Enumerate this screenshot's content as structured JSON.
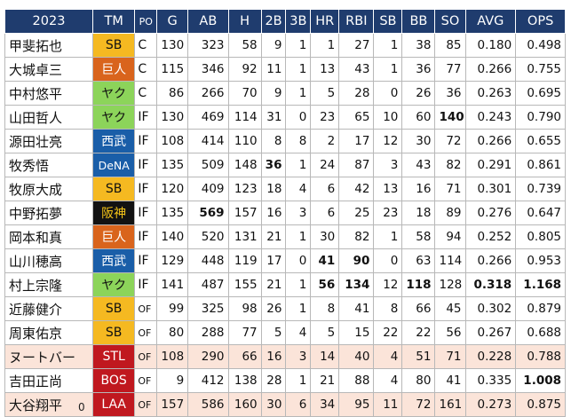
{
  "header": {
    "year": "2023",
    "columns": [
      "TM",
      "PO",
      "G",
      "AB",
      "H",
      "2B",
      "3B",
      "HR",
      "RBI",
      "SB",
      "BB",
      "SO",
      "AVG",
      "OPS"
    ]
  },
  "team_colors": {
    "SB": {
      "bg": "#f5b921",
      "fg": "#111111"
    },
    "巨人": {
      "bg": "#d9641c",
      "fg": "#ffffff"
    },
    "ヤク": {
      "bg": "#8cd45a",
      "fg": "#111111"
    },
    "西武": {
      "bg": "#1a5ea8",
      "fg": "#ffffff"
    },
    "DeNA": {
      "bg": "#1a5ea8",
      "fg": "#ffffff"
    },
    "阪神": {
      "bg": "#121212",
      "fg": "#f5c518"
    },
    "STL": {
      "bg": "#c0181f",
      "fg": "#ffffff"
    },
    "BOS": {
      "bg": "#c0181f",
      "fg": "#ffffff"
    },
    "LAA": {
      "bg": "#c0181f",
      "fg": "#ffffff"
    }
  },
  "rows": [
    {
      "name": "甲斐拓也",
      "team": "SB",
      "po": "C",
      "g": "130",
      "ab": "323",
      "h": "58",
      "d2b": "9",
      "d3b": "1",
      "hr": "1",
      "rbi": "27",
      "sb": "1",
      "bb": "38",
      "so": "85",
      "avg": "0.180",
      "ops": "0.498",
      "mlb": false
    },
    {
      "name": "大城卓三",
      "team": "巨人",
      "po": "C",
      "g": "115",
      "ab": "346",
      "h": "92",
      "d2b": "11",
      "d3b": "1",
      "hr": "13",
      "rbi": "43",
      "sb": "1",
      "bb": "36",
      "so": "77",
      "avg": "0.266",
      "ops": "0.755",
      "mlb": false
    },
    {
      "name": "中村悠平",
      "team": "ヤク",
      "po": "C",
      "g": "86",
      "ab": "266",
      "h": "70",
      "d2b": "9",
      "d3b": "1",
      "hr": "5",
      "rbi": "28",
      "sb": "0",
      "bb": "26",
      "so": "36",
      "avg": "0.263",
      "ops": "0.695",
      "mlb": false
    },
    {
      "name": "山田哲人",
      "team": "ヤク",
      "po": "IF",
      "g": "130",
      "ab": "469",
      "h": "114",
      "d2b": "31",
      "d3b": "0",
      "hr": "23",
      "rbi": "65",
      "sb": "10",
      "bb": "60",
      "so": "140",
      "avg": "0.243",
      "ops": "0.790",
      "mlb": false,
      "bold": [
        "so"
      ]
    },
    {
      "name": "源田壮亮",
      "team": "西武",
      "po": "IF",
      "g": "108",
      "ab": "414",
      "h": "110",
      "d2b": "8",
      "d3b": "8",
      "hr": "2",
      "rbi": "17",
      "sb": "12",
      "bb": "30",
      "so": "72",
      "avg": "0.266",
      "ops": "0.655",
      "mlb": false
    },
    {
      "name": "牧秀悟",
      "team": "DeNA",
      "po": "IF",
      "g": "135",
      "ab": "509",
      "h": "148",
      "d2b": "36",
      "d3b": "1",
      "hr": "24",
      "rbi": "87",
      "sb": "3",
      "bb": "43",
      "so": "82",
      "avg": "0.291",
      "ops": "0.861",
      "mlb": false,
      "bold": [
        "d2b"
      ]
    },
    {
      "name": "牧原大成",
      "team": "SB",
      "po": "IF",
      "g": "120",
      "ab": "409",
      "h": "123",
      "d2b": "18",
      "d3b": "4",
      "hr": "6",
      "rbi": "42",
      "sb": "13",
      "bb": "16",
      "so": "71",
      "avg": "0.301",
      "ops": "0.739",
      "mlb": false
    },
    {
      "name": "中野拓夢",
      "team": "阪神",
      "po": "IF",
      "g": "135",
      "ab": "569",
      "h": "157",
      "d2b": "16",
      "d3b": "3",
      "hr": "6",
      "rbi": "25",
      "sb": "23",
      "bb": "18",
      "so": "89",
      "avg": "0.276",
      "ops": "0.647",
      "mlb": false,
      "bold": [
        "ab"
      ]
    },
    {
      "name": "岡本和真",
      "team": "巨人",
      "po": "IF",
      "g": "140",
      "ab": "520",
      "h": "131",
      "d2b": "21",
      "d3b": "1",
      "hr": "30",
      "rbi": "82",
      "sb": "1",
      "bb": "58",
      "so": "94",
      "avg": "0.252",
      "ops": "0.805",
      "mlb": false
    },
    {
      "name": "山川穂高",
      "team": "西武",
      "po": "IF",
      "g": "129",
      "ab": "448",
      "h": "119",
      "d2b": "17",
      "d3b": "0",
      "hr": "41",
      "rbi": "90",
      "sb": "0",
      "bb": "63",
      "so": "114",
      "avg": "0.266",
      "ops": "0.953",
      "mlb": false,
      "bold": [
        "hr",
        "rbi"
      ]
    },
    {
      "name": "村上宗隆",
      "team": "ヤク",
      "po": "IF",
      "g": "141",
      "ab": "487",
      "h": "155",
      "d2b": "21",
      "d3b": "1",
      "hr": "56",
      "rbi": "134",
      "sb": "12",
      "bb": "118",
      "so": "128",
      "avg": "0.318",
      "ops": "1.168",
      "mlb": false,
      "bold": [
        "hr",
        "rbi",
        "bb",
        "avg",
        "ops"
      ]
    },
    {
      "name": "近藤健介",
      "team": "SB",
      "po": "OF",
      "g": "99",
      "ab": "325",
      "h": "98",
      "d2b": "26",
      "d3b": "1",
      "hr": "8",
      "rbi": "41",
      "sb": "8",
      "bb": "66",
      "so": "45",
      "avg": "0.302",
      "ops": "0.879",
      "mlb": false
    },
    {
      "name": "周東佑京",
      "team": "SB",
      "po": "OF",
      "g": "80",
      "ab": "288",
      "h": "77",
      "d2b": "5",
      "d3b": "4",
      "hr": "5",
      "rbi": "15",
      "sb": "22",
      "bb": "22",
      "so": "56",
      "avg": "0.267",
      "ops": "0.688",
      "mlb": false
    },
    {
      "name": "ヌートバー",
      "team": "STL",
      "po": "OF",
      "g": "108",
      "ab": "290",
      "h": "66",
      "d2b": "16",
      "d3b": "3",
      "hr": "14",
      "rbi": "40",
      "sb": "4",
      "bb": "51",
      "so": "71",
      "avg": "0.228",
      "ops": "0.788",
      "mlb": true
    },
    {
      "name": "吉田正尚",
      "team": "BOS",
      "po": "OF",
      "g": "9",
      "ab": "412",
      "h": "138",
      "d2b": "28",
      "d3b": "1",
      "hr": "21",
      "rbi": "88",
      "sb": "4",
      "bb": "80",
      "so": "41",
      "avg": "0.335",
      "ops": "1.008",
      "mlb": false,
      "bold": [
        "ops"
      ]
    },
    {
      "name": "大谷翔平",
      "team": "LAA",
      "po": "OF",
      "g": "157",
      "ab": "586",
      "h": "160",
      "d2b": "30",
      "d3b": "6",
      "hr": "34",
      "rbi": "95",
      "sb": "11",
      "bb": "72",
      "so": "161",
      "avg": "0.273",
      "ops": "0.875",
      "mlb": true
    }
  ],
  "footer_tick": "0"
}
